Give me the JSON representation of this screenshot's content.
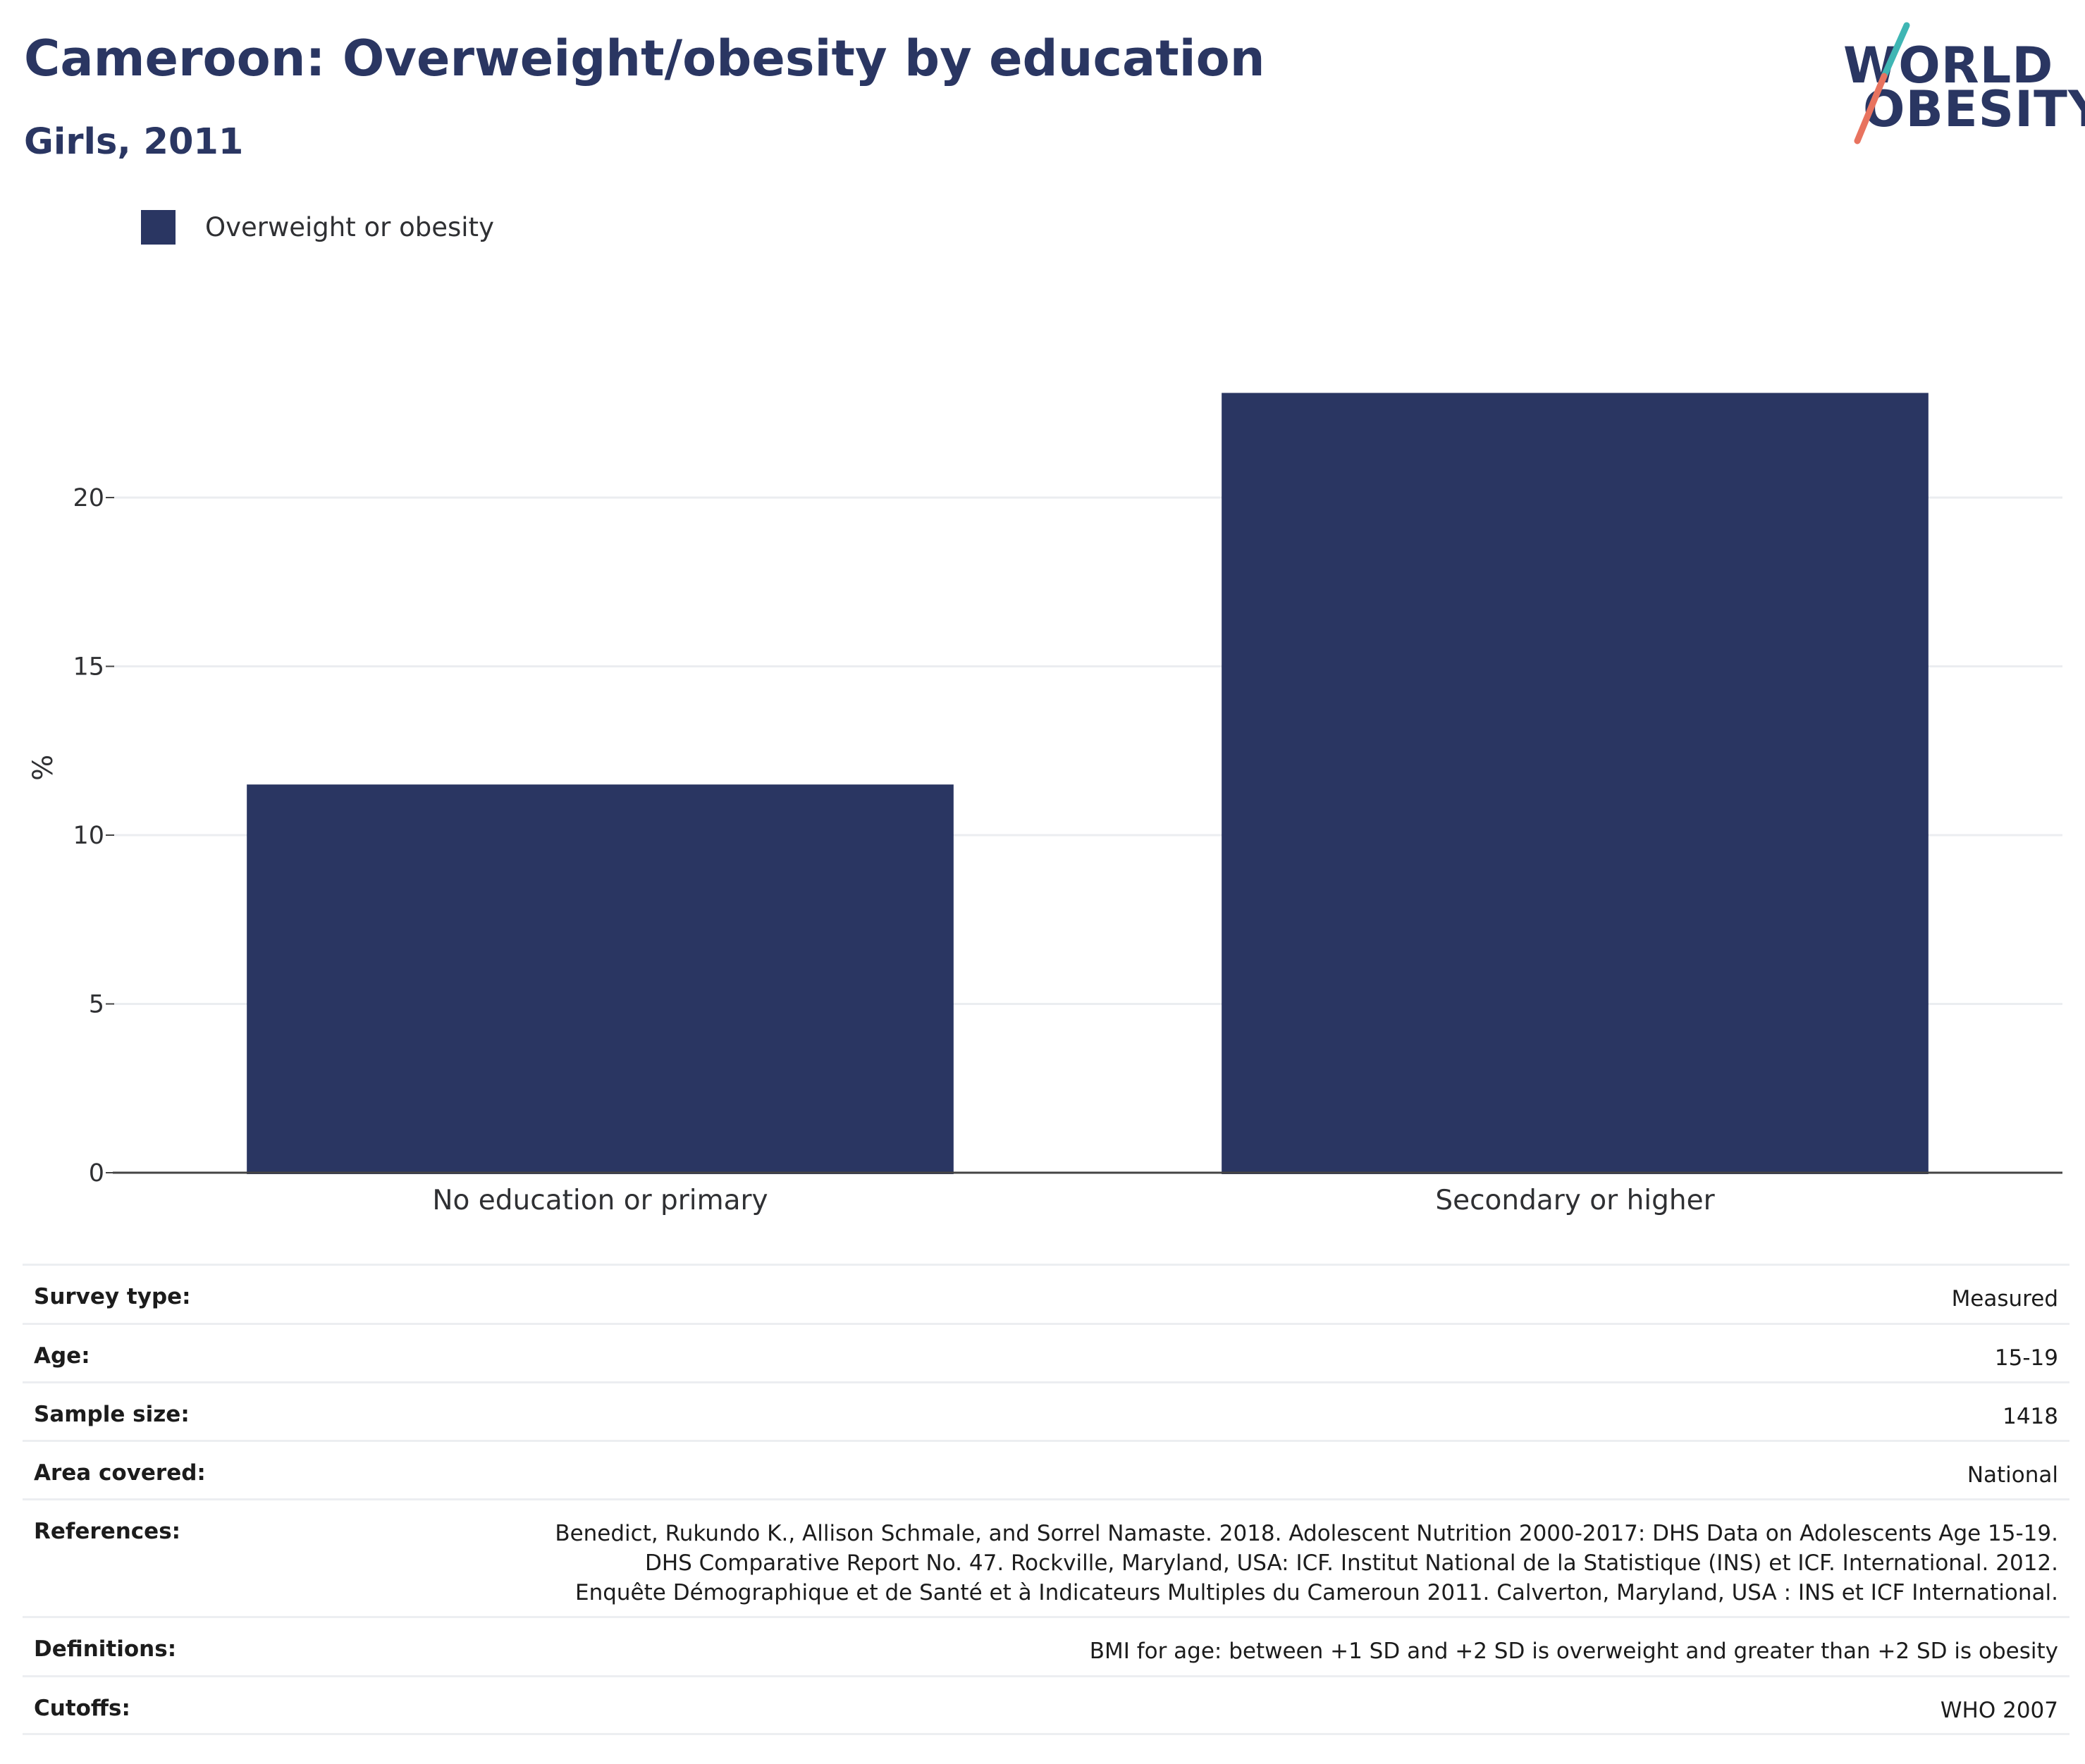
{
  "header": {
    "title": "Cameroon: Overweight/obesity by education",
    "subtitle": "Girls, 2011"
  },
  "logo": {
    "line1": "WORLD",
    "line2": "OBESITY",
    "accent_teal": "#3fb6b4",
    "accent_coral": "#e8735f"
  },
  "legend": {
    "label": "Overweight or obesity",
    "color": "#2a3662"
  },
  "chart_data": {
    "type": "bar",
    "categories": [
      "No education or primary",
      "Secondary or higher"
    ],
    "series": [
      {
        "name": "Overweight or obesity",
        "values": [
          11.5,
          23.1
        ],
        "color": "#2a3662"
      }
    ],
    "ylabel": "%",
    "xlabel": "",
    "ylim": [
      0,
      25
    ],
    "yticks": [
      0,
      5,
      10,
      15,
      20
    ],
    "grid": true,
    "legend_position": "top-left"
  },
  "info_table": [
    {
      "label": "Survey type:",
      "value": "Measured"
    },
    {
      "label": "Age:",
      "value": "15-19"
    },
    {
      "label": "Sample size:",
      "value": "1418"
    },
    {
      "label": "Area covered:",
      "value": "National"
    },
    {
      "label": "References:",
      "value": "Benedict, Rukundo K., Allison Schmale, and Sorrel Namaste. 2018. Adolescent Nutrition 2000-2017: DHS Data on Adolescents Age 15-19. DHS Comparative Report No. 47. Rockville, Maryland, USA: ICF. Institut National de la Statistique (INS) et ICF. International. 2012. Enquête Démographique et de Santé et à Indicateurs Multiples du Cameroun 2011. Calverton, Maryland, USA : INS et ICF International."
    },
    {
      "label": "Definitions:",
      "value": "BMI for age: between +1 SD and +2 SD is overweight and greater than +2 SD is obesity"
    },
    {
      "label": "Cutoffs:",
      "value": "WHO 2007"
    }
  ]
}
